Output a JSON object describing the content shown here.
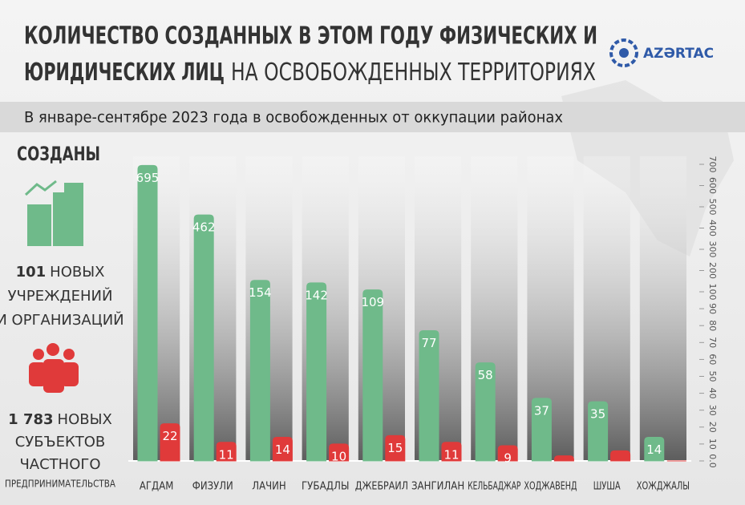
{
  "header": {
    "title_line1": "КОЛИЧЕСТВО СОЗДАННЫХ В ЭТОМ ГОДУ  ФИЗИЧЕСКИХ И",
    "title_line2_bold": "ЮРИДИЧЕСКИХ ЛИЦ",
    "title_line2_rest": "НА ОСВОБОЖДЕННЫХ ТЕРРИТОРИЯХ",
    "logo": "AZƏRTAC",
    "subtitle": "В январе-сентябре 2023 года в освобожденных от оккупации районах"
  },
  "summary": {
    "heading": "СОЗДАНЫ",
    "institutions_count": "101",
    "institutions_text": [
      "НОВЫХ",
      "УЧРЕЖДЕНИЙ",
      "И ОРГАНИЗАЦИЙ"
    ],
    "entrepreneurs_count": "1 783",
    "entrepreneurs_text": [
      "НОВЫХ",
      "СУБЪЕКТОВ",
      "ЧАСТНОГО",
      "ПРЕДПРИНИМАТЕЛЬСТВА"
    ]
  },
  "chart_data": {
    "type": "bar",
    "categories": [
      "АГДАМ",
      "ФИЗУЛИ",
      "ЛАЧИН",
      "ГУБАДЛЫ",
      "ДЖЕБРАИЛ",
      "ЗАНГИЛАН",
      "КЕЛЬБАДЖАР",
      "ХОДЖАВЕНД",
      "ШУША",
      "ХОЖДЖАЛЫ"
    ],
    "series": [
      {
        "color": "#6fba8a",
        "values": [
          695,
          462,
          154,
          142,
          109,
          77,
          58,
          37,
          35,
          14
        ]
      },
      {
        "color": "#e03a3a",
        "values": [
          22,
          11,
          14,
          10,
          15,
          11,
          9,
          3,
          6,
          0
        ]
      }
    ],
    "ylim": [
      0,
      700
    ],
    "yticks": [
      {
        "value": 0,
        "label": "0.0"
      },
      10,
      20,
      30,
      40,
      50,
      60,
      70,
      80,
      90,
      100,
      200,
      300,
      400,
      500,
      600,
      700
    ]
  }
}
